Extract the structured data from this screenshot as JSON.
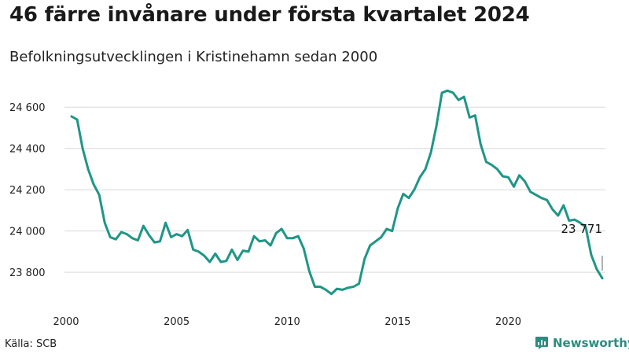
{
  "title": "46 färre invånare under första kvartalet 2024",
  "subtitle": "Befolkningsutvecklingen i Kristinehamn sedan 2000",
  "source": "Källa: SCB",
  "brand": "Newsworthy",
  "colors": {
    "line": "#1e9686",
    "grid": "#d9d9d9",
    "brand": "#2a8d80"
  },
  "chart_data": {
    "type": "line",
    "title": "",
    "xlabel": "",
    "ylabel": "",
    "xlim": [
      2000,
      2024.25
    ],
    "ylim": [
      23690,
      24700
    ],
    "grid": "horizontal",
    "x_ticks": [
      2000,
      2005,
      2010,
      2015,
      2020
    ],
    "x_tick_labels": [
      "2000",
      "2005",
      "2010",
      "2015",
      "2020"
    ],
    "y_ticks": [
      23800,
      24000,
      24200,
      24400,
      24600
    ],
    "y_tick_labels": [
      "23 800",
      "24 000",
      "24 200",
      "24 400",
      "24 600"
    ],
    "annotation": {
      "text": "23 771",
      "x": 2024.25,
      "y": 23771
    },
    "series": [
      {
        "x": [
          2000.25,
          2000.5,
          2000.75,
          2001,
          2001.25,
          2001.5,
          2001.75,
          2002,
          2002.25,
          2002.5,
          2002.75,
          2003,
          2003.25,
          2003.5,
          2003.75,
          2004,
          2004.25,
          2004.5,
          2004.75,
          2005,
          2005.25,
          2005.5,
          2005.75,
          2006,
          2006.25,
          2006.5,
          2006.75,
          2007,
          2007.25,
          2007.5,
          2007.75,
          2008,
          2008.25,
          2008.5,
          2008.75,
          2009,
          2009.25,
          2009.5,
          2009.75,
          2010,
          2010.25,
          2010.5,
          2010.75,
          2011,
          2011.25,
          2011.5,
          2011.75,
          2012,
          2012.25,
          2012.5,
          2012.75,
          2013,
          2013.25,
          2013.5,
          2013.75,
          2014,
          2014.25,
          2014.5,
          2014.75,
          2015,
          2015.25,
          2015.5,
          2015.75,
          2016,
          2016.25,
          2016.5,
          2016.75,
          2017,
          2017.25,
          2017.5,
          2017.75,
          2018,
          2018.25,
          2018.5,
          2018.75,
          2019,
          2019.25,
          2019.5,
          2019.75,
          2020,
          2020.25,
          2020.5,
          2020.75,
          2021,
          2021.25,
          2021.5,
          2021.75,
          2022,
          2022.25,
          2022.5,
          2022.75,
          2023,
          2023.25,
          2023.5,
          2023.75,
          2024,
          2024.25
        ],
        "values": [
          24555,
          24540,
          24400,
          24300,
          24225,
          24175,
          24040,
          23970,
          23960,
          23995,
          23985,
          23965,
          23955,
          24025,
          23980,
          23945,
          23950,
          24040,
          23970,
          23985,
          23975,
          24005,
          23910,
          23900,
          23880,
          23850,
          23890,
          23850,
          23855,
          23910,
          23860,
          23905,
          23900,
          23975,
          23950,
          23955,
          23930,
          23990,
          24010,
          23965,
          23965,
          23975,
          23915,
          23805,
          23730,
          23730,
          23715,
          23695,
          23720,
          23715,
          23725,
          23730,
          23745,
          23865,
          23930,
          23950,
          23970,
          24010,
          24000,
          24110,
          24180,
          24160,
          24200,
          24260,
          24300,
          24380,
          24510,
          24670,
          24680,
          24670,
          24635,
          24650,
          24550,
          24560,
          24420,
          24335,
          24320,
          24300,
          24265,
          24260,
          24215,
          24270,
          24240,
          24190,
          24175,
          24160,
          24150,
          24105,
          24075,
          24125,
          24050,
          24055,
          24040,
          24020,
          23885,
          23815,
          23771
        ]
      }
    ]
  }
}
